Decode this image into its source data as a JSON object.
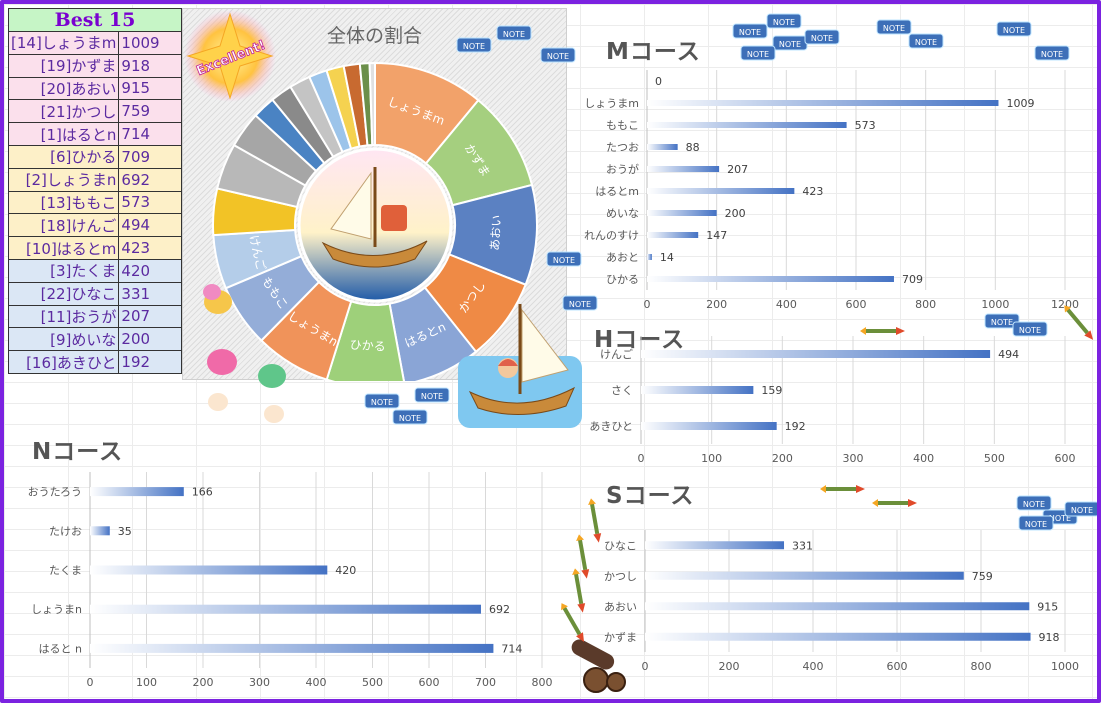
{
  "ranking": {
    "title": "Best 15",
    "rows": [
      {
        "name": "[14]しょうまm",
        "value": "1009",
        "group": 1
      },
      {
        "name": "[19]かずま",
        "value": "918",
        "group": 1
      },
      {
        "name": "[20]あおい",
        "value": "915",
        "group": 1
      },
      {
        "name": "[21]かつし",
        "value": "759",
        "group": 1
      },
      {
        "name": "[1]はるとn",
        "value": "714",
        "group": 1
      },
      {
        "name": "[6]ひかる",
        "value": "709",
        "group": 2
      },
      {
        "name": "[2]しょうまn",
        "value": "692",
        "group": 2
      },
      {
        "name": "[13]ももこ",
        "value": "573",
        "group": 2
      },
      {
        "name": "[18]けんご",
        "value": "494",
        "group": 2
      },
      {
        "name": "[10]はるとm",
        "value": "423",
        "group": 2
      },
      {
        "name": "[3]たくま",
        "value": "420",
        "group": 3
      },
      {
        "name": "[22]ひなこ",
        "value": "331",
        "group": 3
      },
      {
        "name": "[11]おうが",
        "value": "207",
        "group": 3
      },
      {
        "name": "[9]めいな",
        "value": "200",
        "group": 3
      },
      {
        "name": "[16]あきひと",
        "value": "192",
        "group": 3
      }
    ]
  },
  "badge_text": "Excellent!",
  "note_label": "NOTE",
  "chart_data": [
    {
      "type": "pie",
      "title": "全体の割合",
      "categories": [
        "しょうまm",
        "かずま",
        "あおい",
        "かつし",
        "はるとn",
        "ひかる",
        "しょうまn",
        "ももこ",
        "けんご",
        "",
        "",
        "",
        "",
        "",
        "",
        "",
        "",
        "",
        "",
        ""
      ],
      "values": [
        1009,
        918,
        915,
        759,
        714,
        709,
        692,
        573,
        494,
        423,
        420,
        331,
        207,
        200,
        192,
        166,
        159,
        147,
        88,
        49
      ],
      "colors": [
        "#f2a26a",
        "#a5cf7f",
        "#5b81c2",
        "#ef8a45",
        "#8aa5d6",
        "#9ed07a",
        "#f0935a",
        "#94add8",
        "#b4cde9",
        "#f2c326",
        "#b8b8b8",
        "#a6a6a6",
        "#4a83c3",
        "#8a8a8a",
        "#c4c4c4",
        "#9cc4ea",
        "#f5d250",
        "#c86a30",
        "#6b8f4a",
        "#e0e0e0"
      ]
    },
    {
      "type": "bar",
      "title": "Mコース",
      "categories": [
        "",
        "しょうまm",
        "ももこ",
        "たつお",
        "おうが",
        "はるとm",
        "めいな",
        "れんのすけ",
        "あおと",
        "ひかる"
      ],
      "values": [
        0,
        1009,
        573,
        88,
        207,
        423,
        200,
        147,
        14,
        709
      ],
      "xlim": [
        0,
        1200
      ],
      "xticks": [
        0,
        200,
        400,
        600,
        800,
        1000,
        1200
      ]
    },
    {
      "type": "bar",
      "title": "Hコース",
      "categories": [
        "けんご",
        "さく",
        "あきひと"
      ],
      "values": [
        494,
        159,
        192
      ],
      "xlim": [
        0,
        600
      ],
      "xticks": [
        0,
        100,
        200,
        300,
        400,
        500,
        600
      ]
    },
    {
      "type": "bar",
      "title": "Nコース",
      "categories": [
        "おうたろう",
        "たけお",
        "たくま",
        "しょうまn",
        "はると n"
      ],
      "values": [
        166,
        35,
        420,
        692,
        714
      ],
      "xlim": [
        0,
        800
      ],
      "xticks": [
        0,
        100,
        200,
        300,
        400,
        500,
        600,
        700,
        800
      ]
    },
    {
      "type": "bar",
      "title": "Sコース",
      "categories": [
        "ひなこ",
        "かつし",
        "あおい",
        "かずま"
      ],
      "values": [
        331,
        759,
        915,
        918
      ],
      "xlim": [
        0,
        1000
      ],
      "xticks": [
        0,
        200,
        400,
        600,
        800,
        1000
      ]
    }
  ]
}
